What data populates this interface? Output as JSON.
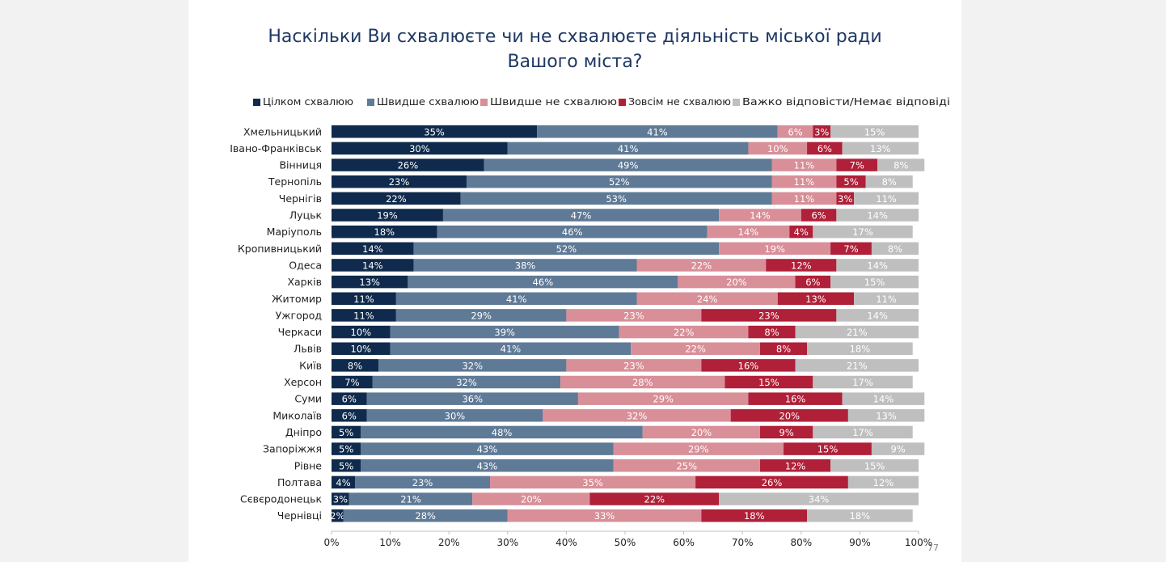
{
  "slide": {
    "title_line1": "Наскільки Ви схвалюєте чи не схвалюєте діяльність міської ради",
    "title_line2": "Вашого міста?",
    "page_number": "77"
  },
  "chart_data": {
    "type": "bar",
    "orientation": "horizontal",
    "stacked": true,
    "title": "Наскільки Ви схвалюєте чи не схвалюєте діяльність міської ради Вашого міста?",
    "xlabel": "",
    "ylabel": "",
    "xlim": [
      0,
      100
    ],
    "x_ticks": [
      "0%",
      "10%",
      "20%",
      "30%",
      "40%",
      "50%",
      "60%",
      "70%",
      "80%",
      "90%",
      "100%"
    ],
    "legend_position": "top",
    "grid": false,
    "categories": [
      "Хмельницький",
      "Івано-Франківськ",
      "Вінниця",
      "Тернопіль",
      "Чернігів",
      "Луцьк",
      "Маріуполь",
      "Кропивницький",
      "Одеса",
      "Харків",
      "Житомир",
      "Ужгород",
      "Черкаси",
      "Львів",
      "Київ",
      "Херсон",
      "Суми",
      "Миколаїв",
      "Дніпро",
      "Запоріжжя",
      "Рівне",
      "Полтава",
      "Сєвєродонецьк",
      "Чернівці"
    ],
    "series": [
      {
        "name": "Цілком схвалюю",
        "color": "#0f2a4c",
        "text_color": "#ffffff",
        "values": [
          35,
          30,
          26,
          23,
          22,
          19,
          18,
          14,
          14,
          13,
          11,
          11,
          10,
          10,
          8,
          7,
          6,
          6,
          5,
          5,
          5,
          4,
          3,
          2
        ]
      },
      {
        "name": "Швидше схвалюю",
        "color": "#5f7a96",
        "text_color": "#ffffff",
        "values": [
          41,
          41,
          49,
          52,
          53,
          47,
          46,
          52,
          38,
          46,
          41,
          29,
          39,
          41,
          32,
          32,
          36,
          30,
          48,
          43,
          43,
          23,
          21,
          28
        ]
      },
      {
        "name": "Швидше не схвалюю",
        "color": "#d88f98",
        "text_color": "#ffffff",
        "values": [
          6,
          10,
          11,
          11,
          11,
          14,
          14,
          19,
          22,
          20,
          24,
          23,
          22,
          22,
          23,
          28,
          29,
          32,
          20,
          29,
          25,
          35,
          20,
          33
        ]
      },
      {
        "name": "Зовсім не схвалюю",
        "color": "#b02038",
        "text_color": "#ffffff",
        "values": [
          3,
          6,
          7,
          5,
          3,
          6,
          4,
          7,
          12,
          6,
          13,
          23,
          8,
          8,
          16,
          15,
          16,
          20,
          9,
          15,
          12,
          26,
          22,
          18
        ]
      },
      {
        "name": "Важко відповісти/Немає відповіді",
        "color": "#bfbfbf",
        "text_color": "#ffffff",
        "values": [
          15,
          13,
          8,
          8,
          11,
          14,
          17,
          8,
          14,
          15,
          11,
          14,
          21,
          18,
          21,
          17,
          14,
          13,
          17,
          9,
          15,
          12,
          34,
          18
        ]
      }
    ]
  }
}
